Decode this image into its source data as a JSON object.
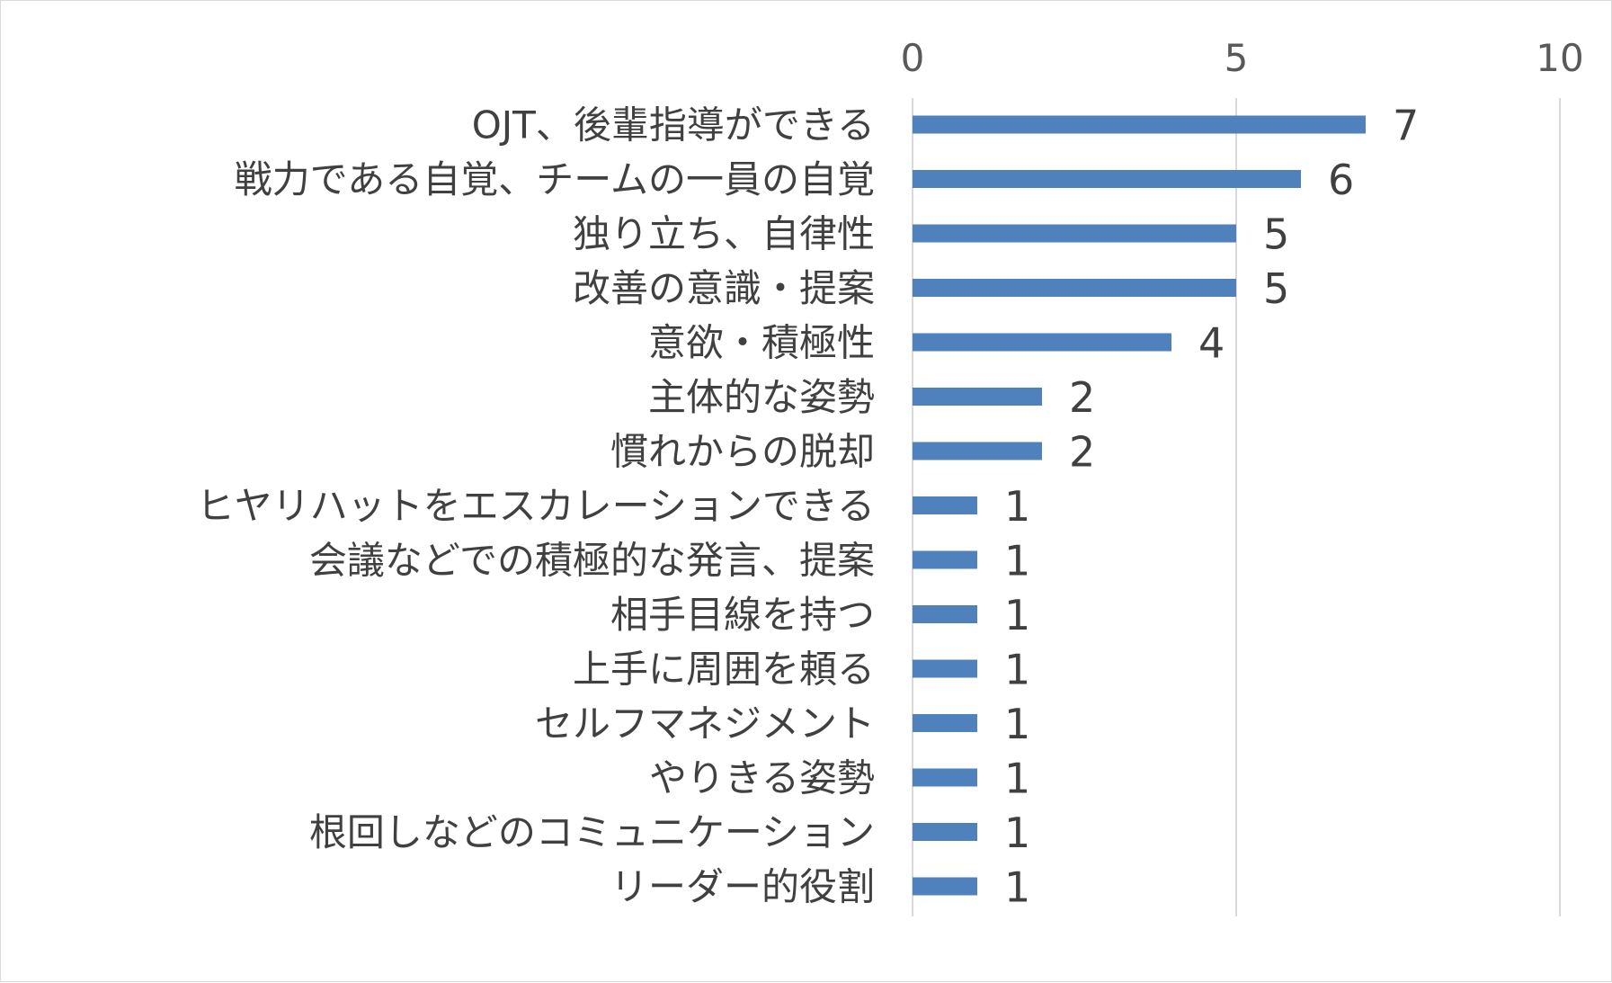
{
  "chart_data": {
    "type": "bar",
    "orientation": "horizontal",
    "categories": [
      "OJT、後輩指導ができる",
      "戦力である自覚、チームの一員の自覚",
      "独り立ち、自律性",
      "改善の意識・提案",
      "意欲・積極性",
      "主体的な姿勢",
      "慣れからの脱却",
      "ヒヤリハットをエスカレーションできる",
      "会議などでの積極的な発言、提案",
      "相手目線を持つ",
      "上手に周囲を頼る",
      "セルフマネジメント",
      "やりきる姿勢",
      "根回しなどのコミュニケーション",
      "リーダー的役割"
    ],
    "values": [
      7,
      6,
      5,
      5,
      4,
      2,
      2,
      1,
      1,
      1,
      1,
      1,
      1,
      1,
      1
    ],
    "xlim": [
      0,
      10
    ],
    "xticks": [
      "0",
      "5",
      "10"
    ],
    "xaxis_position": "top",
    "grid": true,
    "legend": "none",
    "data_labels": true,
    "title": "",
    "xlabel": "",
    "ylabel": ""
  },
  "colors": {
    "bar": "#4f81bd",
    "grid": "#d9d9d9",
    "text": "#404040"
  }
}
